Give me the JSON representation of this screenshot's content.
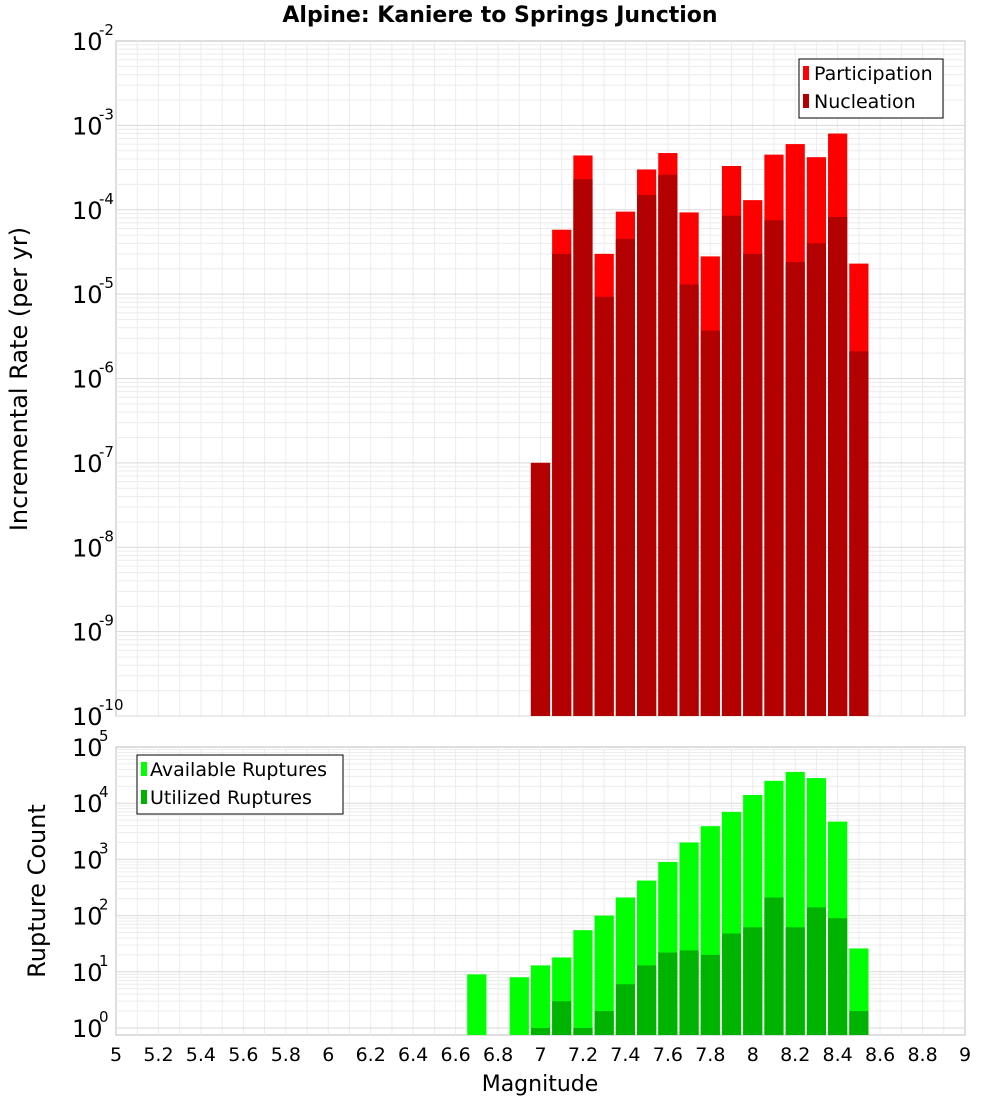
{
  "title": "Alpine: Kaniere to Springs Junction",
  "xlabel": "Magnitude",
  "x_ticks": [
    "5",
    "5.2",
    "5.4",
    "5.6",
    "5.8",
    "6",
    "6.2",
    "6.4",
    "6.6",
    "6.8",
    "7",
    "7.2",
    "7.4",
    "7.6",
    "7.8",
    "8",
    "8.2",
    "8.4",
    "8.6",
    "8.8",
    "9"
  ],
  "chart_data": [
    {
      "type": "bar",
      "ylabel": "Incremental Rate (per yr)",
      "yscale": "log",
      "ylim": [
        1e-10,
        0.01
      ],
      "xlim": [
        5,
        9
      ],
      "grid": true,
      "legend_position": "top-right",
      "y_tick_labels": [
        {
          "base": "10",
          "exp": "-10"
        },
        {
          "base": "10",
          "exp": "-9"
        },
        {
          "base": "10",
          "exp": "-8"
        },
        {
          "base": "10",
          "exp": "-7"
        },
        {
          "base": "10",
          "exp": "-6"
        },
        {
          "base": "10",
          "exp": "-5"
        },
        {
          "base": "10",
          "exp": "-4"
        },
        {
          "base": "10",
          "exp": "-3"
        },
        {
          "base": "10",
          "exp": "-2"
        }
      ],
      "x": [
        7.0,
        7.1,
        7.2,
        7.3,
        7.4,
        7.5,
        7.6,
        7.7,
        7.8,
        7.9,
        8.0,
        8.1,
        8.2,
        8.3,
        8.4,
        8.5
      ],
      "series": [
        {
          "name": "Participation",
          "color": "#ff0000",
          "values": [
            1e-07,
            5.8e-05,
            0.00044,
            3e-05,
            9.5e-05,
            0.0003,
            0.00047,
            9.3e-05,
            2.8e-05,
            0.00033,
            0.00013,
            0.00045,
            0.0006,
            0.00042,
            0.0008,
            2.3e-05
          ]
        },
        {
          "name": "Nucleation",
          "color": "#b30000",
          "values": [
            1e-07,
            3e-05,
            0.00023,
            9.3e-06,
            4.5e-05,
            0.00015,
            0.00026,
            1.3e-05,
            3.7e-06,
            8.5e-05,
            3e-05,
            7.5e-05,
            2.4e-05,
            4e-05,
            8.2e-05,
            2.1e-06
          ]
        }
      ]
    },
    {
      "type": "bar",
      "ylabel": "Rupture Count",
      "yscale": "log",
      "ylim": [
        0.75,
        100000.0
      ],
      "xlim": [
        5,
        9
      ],
      "grid": true,
      "legend_position": "top-left",
      "y_tick_labels": [
        {
          "base": "10",
          "exp": "0"
        },
        {
          "base": "10",
          "exp": "1"
        },
        {
          "base": "10",
          "exp": "2"
        },
        {
          "base": "10",
          "exp": "3"
        },
        {
          "base": "10",
          "exp": "4"
        },
        {
          "base": "10",
          "exp": "5"
        }
      ],
      "x": [
        6.7,
        6.8,
        6.9,
        7.0,
        7.1,
        7.2,
        7.3,
        7.4,
        7.5,
        7.6,
        7.7,
        7.8,
        7.9,
        8.0,
        8.1,
        8.2,
        8.3,
        8.4,
        8.5
      ],
      "series": [
        {
          "name": "Available Ruptures",
          "color": "#00ff00",
          "values": [
            9,
            0,
            8,
            13,
            18,
            55,
            100,
            210,
            420,
            900,
            2000,
            3900,
            7000,
            14000,
            25000,
            36000,
            28000,
            4700,
            26
          ]
        },
        {
          "name": "Utilized Ruptures",
          "color": "#00b300",
          "values": [
            0,
            0,
            0,
            1,
            3,
            1,
            2,
            6,
            13,
            22,
            24,
            20,
            48,
            62,
            210,
            62,
            140,
            90,
            2
          ]
        }
      ]
    }
  ]
}
